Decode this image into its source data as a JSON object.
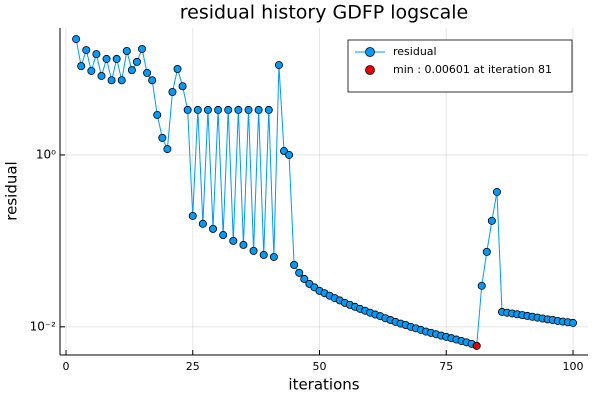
{
  "chart_data": {
    "type": "scatter-line",
    "title": "residual history GDFP logscale",
    "x_label": "iterations",
    "y_label": "residual",
    "xlim": [
      -1.18,
      102.96
    ],
    "xticks": [
      0,
      25,
      50,
      75,
      100
    ],
    "ylim": [
      0.0047,
      30
    ],
    "y_scale": "log",
    "yticks": [
      {
        "value": 1,
        "label": "10⁰"
      },
      {
        "value": 0.01,
        "label": "10⁻²"
      }
    ],
    "grid": true,
    "legend": "top right",
    "series": [
      {
        "name": "residual",
        "color": "#009af9",
        "mode": "lines+markers",
        "x": [
          2,
          3,
          4,
          5,
          6,
          7,
          8,
          9,
          10,
          11,
          12,
          13,
          14,
          15,
          16,
          17,
          18,
          19,
          20,
          21,
          22,
          23,
          24,
          25,
          26,
          27,
          28,
          29,
          30,
          31,
          32,
          33,
          34,
          35,
          36,
          37,
          38,
          39,
          40,
          41,
          42,
          43,
          44,
          45,
          46,
          47,
          48,
          49,
          50,
          51,
          52,
          53,
          54,
          55,
          56,
          57,
          58,
          59,
          60,
          61,
          62,
          63,
          64,
          65,
          66,
          67,
          68,
          69,
          70,
          71,
          72,
          73,
          74,
          75,
          76,
          77,
          78,
          79,
          80,
          81,
          82,
          83,
          84,
          85,
          86,
          87,
          88,
          89,
          90,
          91,
          92,
          93,
          94,
          95,
          96,
          97,
          98,
          99,
          100
        ],
        "values": [
          22.3,
          10.8,
          16.6,
          9.5,
          14.9,
          8.3,
          13.1,
          7.4,
          13.1,
          7.4,
          16.2,
          9.7,
          12.1,
          17.1,
          9.0,
          7.4,
          2.92,
          1.58,
          1.17,
          5.4,
          10.0,
          6.3,
          3.34,
          0.195,
          3.34,
          0.158,
          3.34,
          0.138,
          3.34,
          0.117,
          3.34,
          0.1,
          3.34,
          0.0898,
          3.34,
          0.0765,
          3.34,
          0.0687,
          3.34,
          0.065,
          11.1,
          1.11,
          1.0,
          0.0526,
          0.0425,
          0.0361,
          0.0316,
          0.0288,
          0.0262,
          0.0246,
          0.023,
          0.0216,
          0.0203,
          0.019,
          0.018,
          0.0171,
          0.0162,
          0.0154,
          0.0146,
          0.0139,
          0.0133,
          0.0126,
          0.012,
          0.0114,
          0.0109,
          0.0105,
          0.01,
          0.0096,
          0.0092,
          0.0088,
          0.0085,
          0.0082,
          0.0079,
          0.00765,
          0.00738,
          0.00711,
          0.00685,
          0.0066,
          0.00634,
          0.00601,
          0.03,
          0.0745,
          0.171,
          0.371,
          0.0149,
          0.0146,
          0.0143,
          0.014,
          0.0137,
          0.0134,
          0.0131,
          0.0128,
          0.0125,
          0.0122,
          0.012,
          0.0117,
          0.0115,
          0.0113,
          0.0111
        ]
      },
      {
        "name": "min : 0.00601 at iteration 81",
        "color": "#e50000",
        "mode": "markers",
        "x": [
          81
        ],
        "values": [
          0.00601
        ]
      }
    ]
  }
}
